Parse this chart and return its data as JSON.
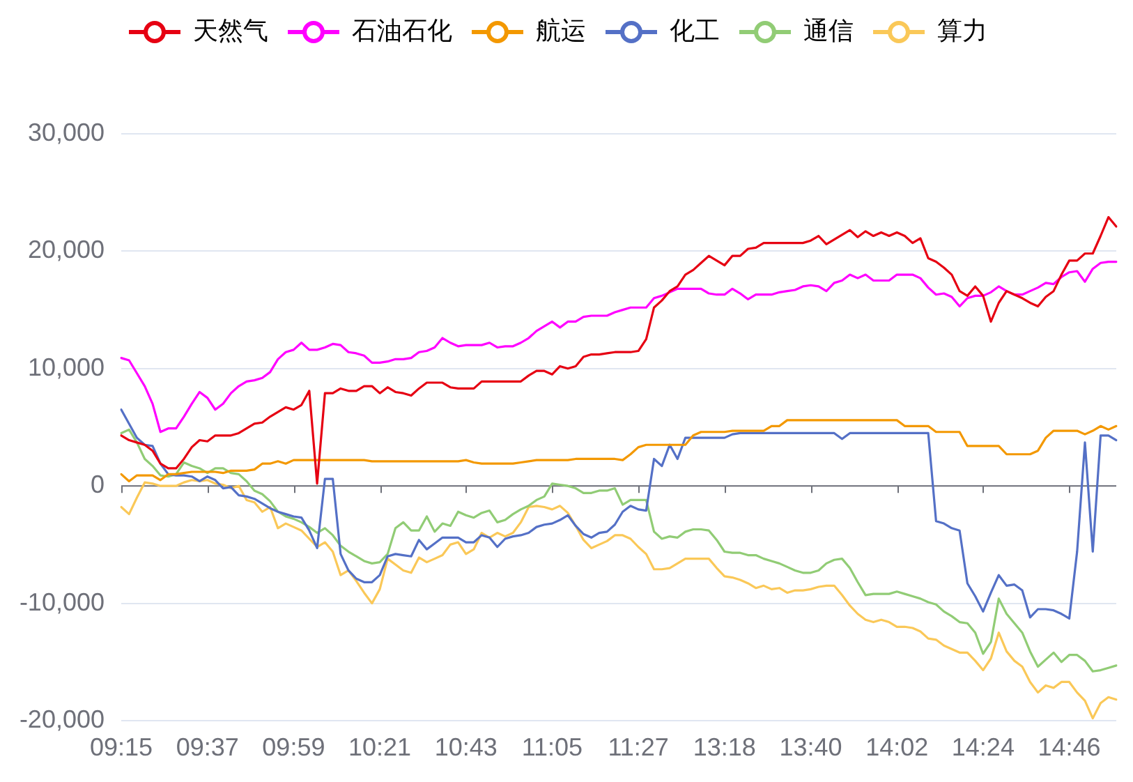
{
  "chart_data": {
    "type": "line",
    "categories": [
      "09:15",
      null,
      null,
      null,
      null,
      null,
      null,
      null,
      null,
      null,
      null,
      "09:37",
      null,
      null,
      null,
      null,
      null,
      null,
      null,
      null,
      null,
      null,
      "09:59",
      null,
      null,
      null,
      null,
      null,
      null,
      null,
      null,
      null,
      null,
      "10:21",
      null,
      null,
      null,
      null,
      null,
      null,
      null,
      null,
      null,
      null,
      "10:43",
      null,
      null,
      null,
      null,
      null,
      null,
      null,
      null,
      null,
      null,
      "11:05",
      null,
      null,
      null,
      null,
      null,
      null,
      null,
      null,
      null,
      null,
      "11:27",
      null,
      null,
      null,
      null,
      null,
      null,
      null,
      null,
      null,
      null,
      "13:18",
      null,
      null,
      null,
      null,
      null,
      null,
      null,
      null,
      null,
      null,
      "13:40",
      null,
      null,
      null,
      null,
      null,
      null,
      null,
      null,
      null,
      null,
      "14:02",
      null,
      null,
      null,
      null,
      null,
      null,
      null,
      null,
      null,
      null,
      "14:24",
      null,
      null,
      null,
      null,
      null,
      null,
      null,
      null,
      null,
      null,
      "14:46",
      null,
      null,
      null,
      null,
      null,
      null
    ],
    "series": [
      {
        "name": "天然气",
        "color": "#e60012",
        "values": [
          4300,
          3900,
          3700,
          3500,
          3000,
          1900,
          1500,
          1500,
          2300,
          3300,
          3900,
          3800,
          4300,
          4300,
          4300,
          4500,
          4900,
          5300,
          5400,
          5900,
          6300,
          6700,
          6500,
          6900,
          8100,
          200,
          7900,
          7900,
          8300,
          8100,
          8100,
          8500,
          8500,
          7900,
          8400,
          8000,
          7900,
          7700,
          8300,
          8800,
          8800,
          8800,
          8400,
          8300,
          8300,
          8300,
          8900,
          8900,
          8900,
          8900,
          8900,
          8900,
          9400,
          9800,
          9800,
          9500,
          10200,
          10000,
          10200,
          11000,
          11200,
          11200,
          11300,
          11400,
          11400,
          11400,
          11500,
          12500,
          15200,
          15800,
          16600,
          17000,
          18000,
          18400,
          19000,
          19600,
          19200,
          18800,
          19600,
          19600,
          20200,
          20300,
          20700,
          20700,
          20700,
          20700,
          20700,
          20700,
          20900,
          21300,
          20600,
          21000,
          21400,
          21800,
          21200,
          21700,
          21300,
          21600,
          21300,
          21600,
          21300,
          20700,
          21100,
          19400,
          19100,
          18600,
          18000,
          16600,
          16200,
          17000,
          16200,
          14000,
          15600,
          16600,
          16300,
          16000,
          15600,
          15300,
          16100,
          16600,
          18000,
          19200,
          19200,
          19800,
          19800,
          21300,
          22900,
          22100
        ]
      },
      {
        "name": "石油石化",
        "color": "#ff00ff",
        "values": [
          10900,
          10700,
          9600,
          8500,
          7000,
          4600,
          4900,
          4900,
          5900,
          7000,
          8000,
          7500,
          6500,
          7000,
          7900,
          8500,
          8900,
          9000,
          9200,
          9700,
          10800,
          11400,
          11600,
          12200,
          11600,
          11600,
          11800,
          12100,
          12000,
          11400,
          11300,
          11100,
          10500,
          10500,
          10600,
          10800,
          10800,
          10900,
          11400,
          11500,
          11800,
          12600,
          12200,
          11900,
          12000,
          12000,
          12000,
          12200,
          11800,
          11900,
          11900,
          12200,
          12600,
          13200,
          13600,
          14000,
          13500,
          14000,
          14000,
          14400,
          14500,
          14500,
          14500,
          14800,
          15000,
          15200,
          15200,
          15200,
          16000,
          16200,
          16500,
          16800,
          16800,
          16800,
          16800,
          16400,
          16300,
          16300,
          16800,
          16400,
          15900,
          16300,
          16300,
          16300,
          16500,
          16600,
          16700,
          17000,
          17100,
          17000,
          16600,
          17300,
          17500,
          18000,
          17700,
          18000,
          17500,
          17500,
          17500,
          18000,
          18000,
          18000,
          17700,
          16900,
          16300,
          16400,
          16100,
          15300,
          16000,
          16200,
          16200,
          16500,
          17000,
          16600,
          16300,
          16300,
          16600,
          16900,
          17300,
          17200,
          17800,
          18200,
          18300,
          17400,
          18500,
          19000,
          19100,
          19100
        ]
      },
      {
        "name": "航运",
        "color": "#f39800",
        "values": [
          1000,
          400,
          900,
          900,
          900,
          500,
          1000,
          1000,
          1100,
          1200,
          1200,
          1200,
          1200,
          1100,
          1300,
          1300,
          1300,
          1400,
          1900,
          1900,
          2100,
          1900,
          2200,
          2200,
          2200,
          2200,
          2200,
          2200,
          2200,
          2200,
          2200,
          2200,
          2100,
          2100,
          2100,
          2100,
          2100,
          2100,
          2100,
          2100,
          2100,
          2100,
          2100,
          2100,
          2200,
          2000,
          1900,
          1900,
          1900,
          1900,
          1900,
          2000,
          2100,
          2200,
          2200,
          2200,
          2200,
          2200,
          2300,
          2300,
          2300,
          2300,
          2300,
          2300,
          2200,
          2700,
          3300,
          3500,
          3500,
          3500,
          3500,
          3500,
          3500,
          4300,
          4600,
          4600,
          4600,
          4600,
          4700,
          4700,
          4700,
          4700,
          4700,
          5100,
          5100,
          5600,
          5600,
          5600,
          5600,
          5600,
          5600,
          5600,
          5600,
          5600,
          5600,
          5600,
          5600,
          5600,
          5600,
          5600,
          5100,
          5100,
          5100,
          5100,
          4600,
          4600,
          4600,
          4600,
          3400,
          3400,
          3400,
          3400,
          3400,
          2700,
          2700,
          2700,
          2700,
          3000,
          4100,
          4700,
          4700,
          4700,
          4700,
          4400,
          4700,
          5100,
          4800,
          5100
        ]
      },
      {
        "name": "化工",
        "color": "#5470c6",
        "values": [
          6500,
          5300,
          4100,
          3500,
          3400,
          1900,
          1000,
          900,
          900,
          800,
          400,
          800,
          500,
          -200,
          -100,
          -800,
          -900,
          -1100,
          -1500,
          -1900,
          -2200,
          -2400,
          -2600,
          -2700,
          -3800,
          -5300,
          600,
          600,
          -5800,
          -7200,
          -7900,
          -8200,
          -8200,
          -7600,
          -6000,
          -5800,
          -5900,
          -6000,
          -4600,
          -5400,
          -4900,
          -4400,
          -4400,
          -4400,
          -4800,
          -4800,
          -4200,
          -4400,
          -5200,
          -4500,
          -4300,
          -4200,
          -4000,
          -3500,
          -3300,
          -3200,
          -2900,
          -2500,
          -3400,
          -4100,
          -4400,
          -4000,
          -3900,
          -3300,
          -2200,
          -1700,
          -2000,
          -2100,
          2300,
          1700,
          3500,
          2300,
          4100,
          4100,
          4100,
          4100,
          4100,
          4100,
          4400,
          4500,
          4500,
          4500,
          4500,
          4500,
          4500,
          4500,
          4500,
          4500,
          4500,
          4500,
          4500,
          4500,
          4000,
          4500,
          4500,
          4500,
          4500,
          4500,
          4500,
          4500,
          4500,
          4500,
          4500,
          4500,
          -3000,
          -3200,
          -3600,
          -3800,
          -8300,
          -9400,
          -10700,
          -9100,
          -7600,
          -8500,
          -8400,
          -8900,
          -11200,
          -10500,
          -10500,
          -10600,
          -10900,
          -11300,
          -5600,
          3700,
          -5600,
          4300,
          4300,
          3900
        ]
      },
      {
        "name": "通信",
        "color": "#91cc75",
        "values": [
          4500,
          4800,
          3700,
          2300,
          1700,
          900,
          800,
          1000,
          2000,
          1700,
          1500,
          1100,
          1500,
          1500,
          1100,
          1000,
          400,
          -400,
          -700,
          -1300,
          -2200,
          -2600,
          -2800,
          -3100,
          -3500,
          -4000,
          -3600,
          -4200,
          -5100,
          -5600,
          -6000,
          -6400,
          -6600,
          -6500,
          -5800,
          -3600,
          -3100,
          -3800,
          -3800,
          -2600,
          -3900,
          -3200,
          -3400,
          -2200,
          -2500,
          -2700,
          -2300,
          -2100,
          -3100,
          -2900,
          -2400,
          -2000,
          -1700,
          -1200,
          -900,
          200,
          100,
          0,
          -200,
          -600,
          -600,
          -400,
          -400,
          -200,
          -1600,
          -1200,
          -1200,
          -1200,
          -3900,
          -4500,
          -4300,
          -4400,
          -3900,
          -3700,
          -3700,
          -3800,
          -4600,
          -5600,
          -5700,
          -5700,
          -5900,
          -5900,
          -6200,
          -6400,
          -6600,
          -6900,
          -7200,
          -7400,
          -7400,
          -7200,
          -6600,
          -6300,
          -6200,
          -7000,
          -8200,
          -9300,
          -9200,
          -9200,
          -9200,
          -9000,
          -9200,
          -9400,
          -9600,
          -9900,
          -10100,
          -10700,
          -11100,
          -11600,
          -11700,
          -12500,
          -14300,
          -13300,
          -9600,
          -10900,
          -11700,
          -12500,
          -14100,
          -15400,
          -14800,
          -14200,
          -15000,
          -14400,
          -14400,
          -14900,
          -15800,
          -15700,
          -15500,
          -15300
        ]
      },
      {
        "name": "算力",
        "color": "#fac858",
        "values": [
          -1800,
          -2400,
          -1000,
          300,
          200,
          0,
          0,
          0,
          300,
          500,
          400,
          500,
          200,
          100,
          -200,
          0,
          -1200,
          -1400,
          -2200,
          -1800,
          -3600,
          -3200,
          -3500,
          -3800,
          -4500,
          -5200,
          -4800,
          -5600,
          -7600,
          -7200,
          -8100,
          -9100,
          -10000,
          -8800,
          -6200,
          -6700,
          -7200,
          -7400,
          -6100,
          -6500,
          -6200,
          -5900,
          -5000,
          -4800,
          -5800,
          -5400,
          -4000,
          -4400,
          -4000,
          -4300,
          -4000,
          -3100,
          -1800,
          -1700,
          -1800,
          -2000,
          -1700,
          -2300,
          -3400,
          -4600,
          -5300,
          -5000,
          -4700,
          -4200,
          -4200,
          -4500,
          -5200,
          -5800,
          -7100,
          -7100,
          -7000,
          -6600,
          -6200,
          -6200,
          -6200,
          -6200,
          -7000,
          -7700,
          -7800,
          -8000,
          -8300,
          -8700,
          -8500,
          -8800,
          -8700,
          -9100,
          -8900,
          -8900,
          -8800,
          -8600,
          -8500,
          -8500,
          -9300,
          -10200,
          -10900,
          -11400,
          -11600,
          -11400,
          -11600,
          -12000,
          -12000,
          -12100,
          -12400,
          -13000,
          -13100,
          -13600,
          -13900,
          -14200,
          -14200,
          -14900,
          -15700,
          -14700,
          -12500,
          -14100,
          -14900,
          -15400,
          -16700,
          -17600,
          -17000,
          -17200,
          -16700,
          -16700,
          -17600,
          -18300,
          -19800,
          -18500,
          -18000,
          -18200
        ]
      }
    ],
    "ylim": [
      -20000,
      30000
    ],
    "yticks": [
      {
        "value": -20000,
        "label": "-20,000"
      },
      {
        "value": -10000,
        "label": "-10,000"
      },
      0,
      {
        "value": 10000,
        "label": "10,000"
      },
      {
        "value": 20000,
        "label": "20,000"
      },
      {
        "value": 30000,
        "label": "30,000"
      }
    ],
    "grid": "y",
    "legend": "top",
    "marker": "none"
  }
}
